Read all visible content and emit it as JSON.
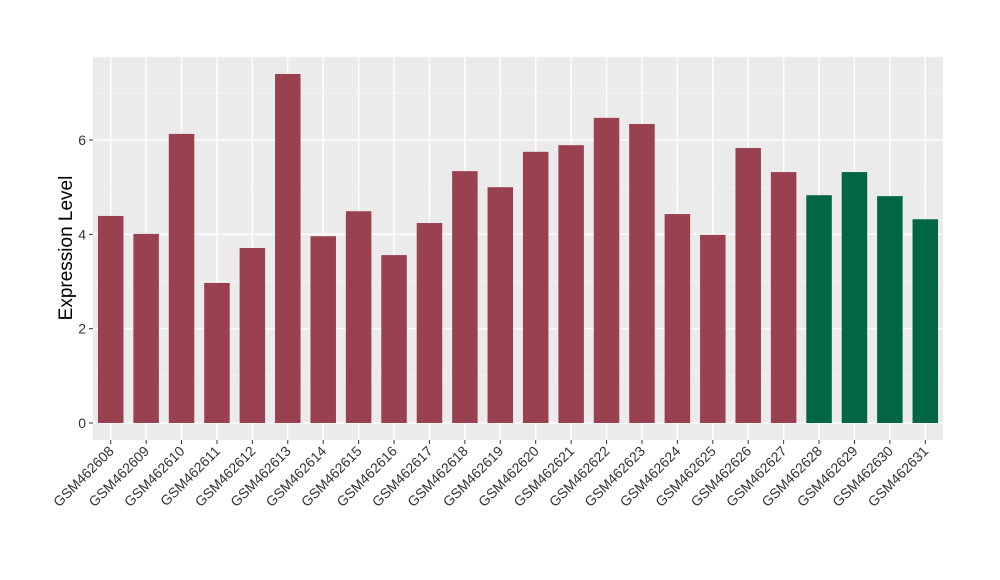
{
  "chart_data": {
    "type": "bar",
    "y_label": "Expression Level",
    "categories": [
      "GSM462608",
      "GSM462609",
      "GSM462610",
      "GSM462611",
      "GSM462612",
      "GSM462613",
      "GSM462614",
      "GSM462615",
      "GSM462616",
      "GSM462617",
      "GSM462618",
      "GSM462619",
      "GSM462620",
      "GSM462621",
      "GSM462622",
      "GSM462623",
      "GSM462624",
      "GSM462625",
      "GSM462626",
      "GSM462627",
      "GSM462628",
      "GSM462629",
      "GSM462630",
      "GSM462631"
    ],
    "values": [
      4.39,
      4.01,
      6.13,
      2.97,
      3.71,
      7.4,
      3.96,
      4.49,
      3.56,
      4.24,
      5.34,
      5.0,
      5.75,
      5.89,
      6.47,
      6.34,
      4.43,
      3.99,
      5.83,
      5.32,
      4.83,
      5.32,
      4.81,
      4.32
    ],
    "colors": [
      "#99414f",
      "#99414f",
      "#99414f",
      "#99414f",
      "#99414f",
      "#99414f",
      "#99414f",
      "#99414f",
      "#99414f",
      "#99414f",
      "#99414f",
      "#99414f",
      "#99414f",
      "#99414f",
      "#99414f",
      "#99414f",
      "#99414f",
      "#99414f",
      "#99414f",
      "#99414f",
      "#006643",
      "#006643",
      "#006643",
      "#006643"
    ],
    "ylim": [
      -0.36,
      7.76
    ],
    "yticks": [
      0,
      2,
      4,
      6
    ],
    "grid": true
  }
}
